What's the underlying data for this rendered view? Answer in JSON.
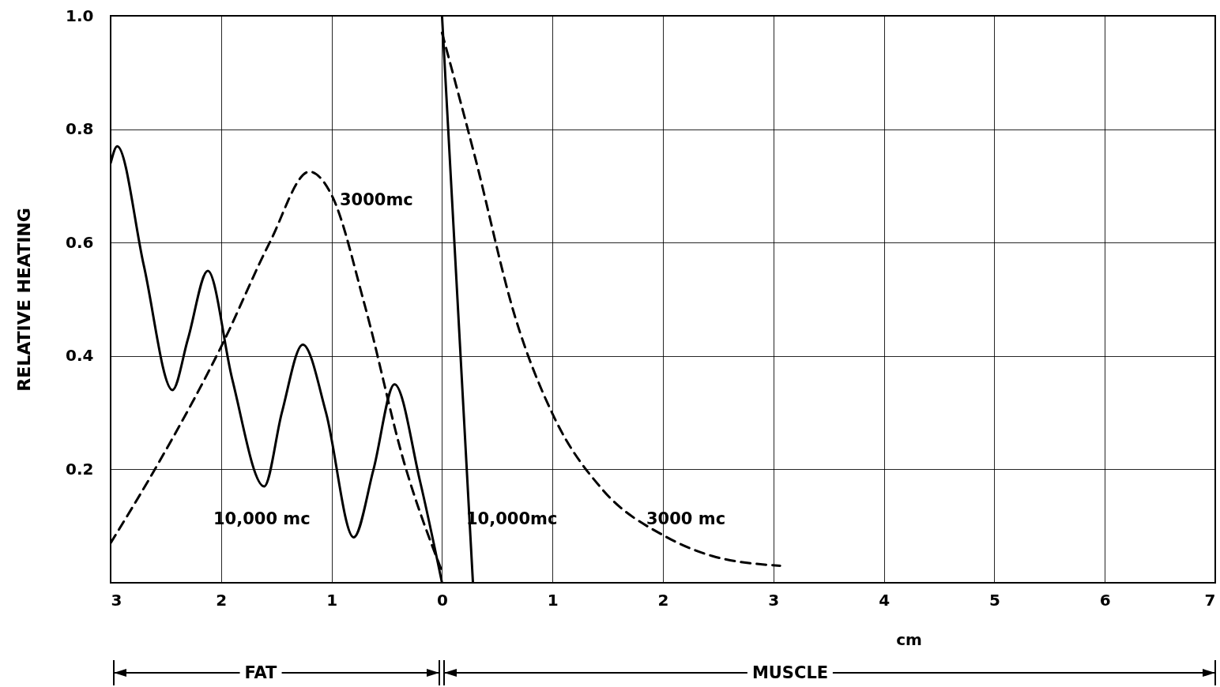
{
  "chart_data": {
    "type": "line",
    "xlabel": "cm",
    "ylabel": "RELATIVE HEATING",
    "xlim": [
      -3,
      7
    ],
    "ylim": [
      0,
      1
    ],
    "xticks": [
      {
        "value": -3,
        "label": "3"
      },
      {
        "value": -2,
        "label": "2"
      },
      {
        "value": -1,
        "label": "1"
      },
      0,
      1,
      2,
      3,
      4,
      5,
      6,
      7
    ],
    "yticks": [
      0.2,
      0.4,
      0.6,
      0.8,
      {
        "value": 1,
        "label": "1.0"
      }
    ],
    "grid": true,
    "series": [
      {
        "color": "#000000",
        "line_style": "solid",
        "x": [
          -3,
          -2.94,
          -2.7,
          -2.44,
          -2.3,
          -2.12,
          -1.9,
          -1.61,
          -1.45,
          -1.26,
          -1.05,
          -0.8,
          -0.62,
          -0.43,
          -0.2,
          0
        ],
        "values": [
          0.74,
          0.77,
          0.56,
          0.34,
          0.43,
          0.55,
          0.36,
          0.17,
          0.3,
          0.42,
          0.3,
          0.08,
          0.2,
          0.35,
          0.18,
          0
        ]
      },
      {
        "color": "#000000",
        "line_style": "solid",
        "x": [
          0,
          0.28
        ],
        "values": [
          1,
          0
        ]
      },
      {
        "color": "#000000",
        "line_style": "dashed",
        "x": [
          -3,
          -2.57,
          -1.99,
          -1.56,
          -1.2,
          -0.99,
          -0.7,
          -0.34,
          0
        ],
        "values": [
          0.07,
          0.21,
          0.42,
          0.6,
          0.725,
          0.68,
          0.49,
          0.21,
          0.02
        ]
      },
      {
        "color": "#000000",
        "line_style": "dashed",
        "x": [
          0,
          0.3,
          0.66,
          1.02,
          1.45,
          2.02,
          2.45,
          3.06
        ],
        "values": [
          0.97,
          0.75,
          0.47,
          0.29,
          0.165,
          0.082,
          0.047,
          0.03
        ]
      }
    ],
    "annotations": [
      "3000mc",
      "10,000 mc",
      "10,000mc",
      "3000 mc",
      "FAT",
      "MUSCLE"
    ]
  }
}
